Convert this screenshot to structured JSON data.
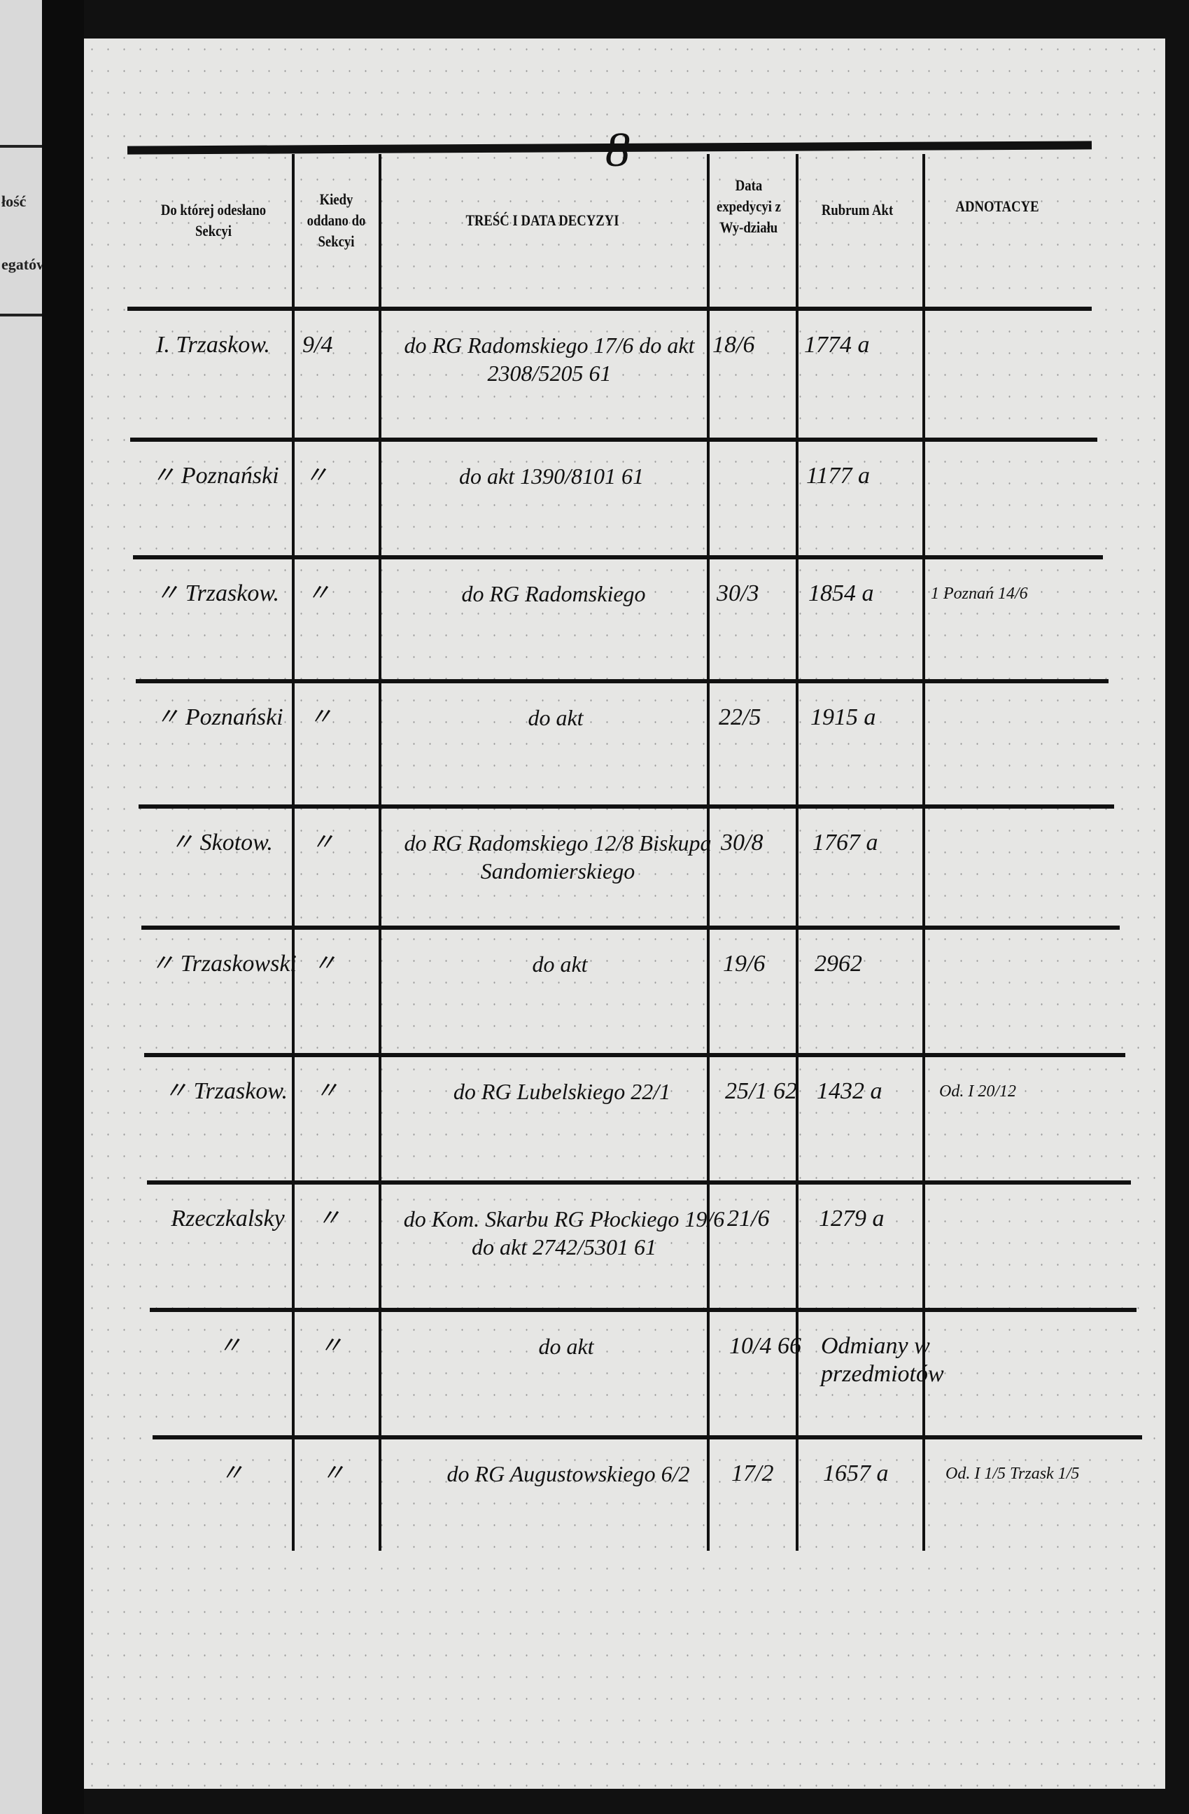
{
  "page_number": "8",
  "left_page_fragments": [
    "łość",
    "egatów"
  ],
  "headers": {
    "section": "Do której odesłano Sekcyi",
    "when": "Kiedy oddano do Sekcyi",
    "content": "TREŚĆ I DATA DECYZYI",
    "dispatch": "Data expedycyi z Wy-działu",
    "rubrum": "Rubrum Akt",
    "notes": "ADNOTACYE"
  },
  "rows": [
    {
      "section": "I. Trzaskow.",
      "when": "9/4",
      "content": "do RG Radomskiego 17/6 do akt 2308/5205 61",
      "dispatch": "18/6",
      "rubrum": "1774 a",
      "notes": ""
    },
    {
      "section": "〃 Poznański",
      "when": "〃",
      "content": "do akt 1390/8101 61",
      "dispatch": "",
      "rubrum": "1177 a",
      "notes": ""
    },
    {
      "section": "〃 Trzaskow.",
      "when": "〃",
      "content": "do RG Radomskiego",
      "dispatch": "30/3",
      "rubrum": "1854 a",
      "notes": "1 Poznań 14/6"
    },
    {
      "section": "〃 Poznański",
      "when": "〃",
      "content": "do akt",
      "dispatch": "22/5",
      "rubrum": "1915 a",
      "notes": ""
    },
    {
      "section": "〃 Skotow.",
      "when": "〃",
      "content": "do RG Radomskiego 12/8 Biskupa Sandomierskiego",
      "dispatch": "30/8",
      "rubrum": "1767 a",
      "notes": ""
    },
    {
      "section": "〃 Trzaskowski",
      "when": "〃",
      "content": "do akt",
      "dispatch": "19/6",
      "rubrum": "2962",
      "notes": ""
    },
    {
      "section": "〃 Trzaskow.",
      "when": "〃",
      "content": "do RG Lubelskiego 22/1",
      "dispatch": "25/1 62",
      "rubrum": "1432 a",
      "notes": "Od. I 20/12"
    },
    {
      "section": "Rzeczkalsky",
      "when": "〃",
      "content": "do Kom. Skarbu RG Płockiego 19/6 do akt 2742/5301 61",
      "dispatch": "21/6",
      "rubrum": "1279 a",
      "notes": ""
    },
    {
      "section": "〃",
      "when": "〃",
      "content": "do akt",
      "dispatch": "10/4 66",
      "rubrum": "Odmiany w przedmiotów",
      "notes": ""
    },
    {
      "section": "〃",
      "when": "〃",
      "content": "do RG Augustowskiego 6/2",
      "dispatch": "17/2",
      "rubrum": "1657 a",
      "notes": "Od. I 1/5 Trzask 1/5"
    }
  ]
}
